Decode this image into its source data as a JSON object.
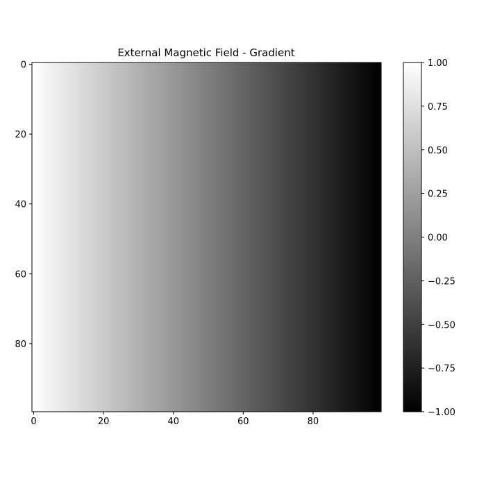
{
  "chart_data": {
    "type": "heatmap",
    "title": "External Magnetic Field - Gradient",
    "colormap": "gray",
    "image_width": 100,
    "image_height": 100,
    "value_range": [
      -1.0,
      1.0
    ],
    "gradient_direction": "horizontal",
    "value_at_x_start": 1.0,
    "value_at_x_end": -1.0,
    "x_ticks": [
      0,
      20,
      40,
      60,
      80
    ],
    "y_ticks": [
      0,
      20,
      40,
      60,
      80
    ],
    "y_axis_inverted": true,
    "colorbar": {
      "ticks": [
        1.0,
        0.75,
        0.5,
        0.25,
        0.0,
        -0.25,
        -0.5,
        -0.75,
        -1.0
      ],
      "tick_labels": [
        "1.00",
        "0.75",
        "0.50",
        "0.25",
        "0.00",
        "−0.25",
        "−0.50",
        "−0.75",
        "−1.00"
      ],
      "placement": "right"
    },
    "colors": {
      "min": "#000000",
      "max": "#ffffff"
    }
  }
}
